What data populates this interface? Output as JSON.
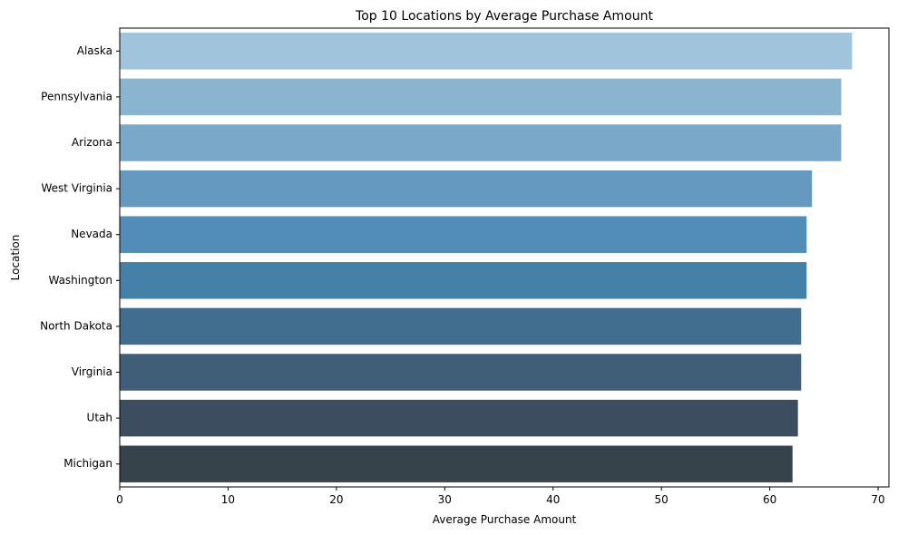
{
  "chart_data": {
    "type": "bar",
    "orientation": "horizontal",
    "title": "Top 10 Locations by Average Purchase Amount",
    "xlabel": "Average Purchase Amount",
    "ylabel": "Location",
    "xlim": [
      0,
      71
    ],
    "xticks": [
      0,
      10,
      20,
      30,
      40,
      50,
      60,
      70
    ],
    "grid": false,
    "categories": [
      "Alaska",
      "Pennsylvania",
      "Arizona",
      "West Virginia",
      "Nevada",
      "Washington",
      "North Dakota",
      "Virginia",
      "Utah",
      "Michigan"
    ],
    "values": [
      67.6,
      66.6,
      66.6,
      63.9,
      63.4,
      63.4,
      62.9,
      62.9,
      62.6,
      62.1
    ],
    "colors": [
      "#9fc4dc",
      "#8bb4d0",
      "#7aa8c8",
      "#6699c0",
      "#528cb8",
      "#4480a8",
      "#416e8e",
      "#405e77",
      "#3d4d60",
      "#37434a"
    ]
  }
}
